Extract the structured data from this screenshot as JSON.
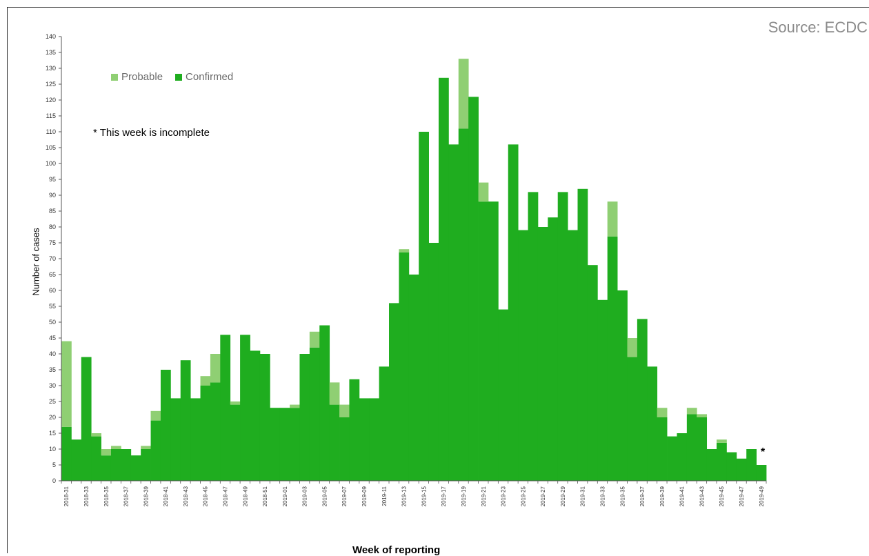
{
  "source": "Source: ECDC",
  "legend": {
    "probable": "Probable",
    "confirmed": "Confirmed"
  },
  "note": "* This week is incomplete",
  "incomplete_marker": "*",
  "colors": {
    "confirmed": "#1fad1f",
    "probable": "#8fcf73",
    "axis": "#555555"
  },
  "chart_data": {
    "type": "bar",
    "stacked": true,
    "ylabel": "Number of cases",
    "xlabel": "Week of reporting",
    "ylim": [
      0,
      140
    ],
    "ytick_step": 5,
    "categories": [
      "2018-31",
      "2018-32",
      "2018-33",
      "2018-34",
      "2018-35",
      "2018-36",
      "2018-37",
      "2018-38",
      "2018-39",
      "2018-40",
      "2018-41",
      "2018-42",
      "2018-43",
      "2018-44",
      "2018-45",
      "2018-46",
      "2018-47",
      "2018-48",
      "2018-49",
      "2018-50",
      "2018-51",
      "2018-52",
      "2019-01",
      "2019-02",
      "2019-03",
      "2019-04",
      "2019-05",
      "2019-06",
      "2019-07",
      "2019-08",
      "2019-09",
      "2019-10",
      "2019-11",
      "2019-12",
      "2019-13",
      "2019-14",
      "2019-15",
      "2019-16",
      "2019-17",
      "2019-18",
      "2019-19",
      "2019-20",
      "2019-21",
      "2019-22",
      "2019-23",
      "2019-24",
      "2019-25",
      "2019-26",
      "2019-27",
      "2019-28",
      "2019-29",
      "2019-30",
      "2019-31",
      "2019-32",
      "2019-33",
      "2019-34",
      "2019-35",
      "2019-36",
      "2019-37",
      "2019-38",
      "2019-39",
      "2019-40",
      "2019-41",
      "2019-42",
      "2019-43",
      "2019-44",
      "2019-45",
      "2019-46",
      "2019-47",
      "2019-48",
      "2019-49"
    ],
    "tick_labels": [
      "2018-31",
      "2018-33",
      "2018-35",
      "2018-37",
      "2018-39",
      "2018-41",
      "2018-43",
      "2018-45",
      "2018-47",
      "2018-49",
      "2018-51",
      "2019-01",
      "2019-03",
      "2019-05",
      "2019-07",
      "2019-09",
      "2019-11",
      "2019-13",
      "2019-15",
      "2019-17",
      "2019-19",
      "2019-21",
      "2019-23",
      "2019-25",
      "2019-27",
      "2019-29",
      "2019-31",
      "2019-33",
      "2019-35",
      "2019-37",
      "2019-39",
      "2019-41",
      "2019-43",
      "2019-45",
      "2019-47",
      "2019-49"
    ],
    "series": [
      {
        "name": "Confirmed",
        "values": [
          17,
          13,
          39,
          14,
          8,
          10,
          10,
          8,
          10,
          19,
          35,
          26,
          38,
          26,
          30,
          31,
          46,
          24,
          46,
          41,
          40,
          23,
          23,
          23,
          40,
          42,
          49,
          24,
          20,
          32,
          26,
          26,
          36,
          56,
          72,
          65,
          110,
          75,
          127,
          106,
          111,
          121,
          88,
          88,
          54,
          106,
          79,
          91,
          80,
          83,
          91,
          79,
          92,
          68,
          57,
          77,
          60,
          39,
          51,
          36,
          20,
          14,
          15,
          21,
          20,
          10,
          12,
          9,
          7,
          10,
          5
        ]
      },
      {
        "name": "Probable",
        "values": [
          27,
          0,
          0,
          1,
          2,
          1,
          0,
          0,
          1,
          3,
          0,
          0,
          0,
          0,
          3,
          9,
          0,
          1,
          0,
          0,
          0,
          0,
          0,
          1,
          0,
          5,
          0,
          7,
          4,
          0,
          0,
          0,
          0,
          0,
          1,
          0,
          0,
          0,
          0,
          0,
          22,
          0,
          6,
          0,
          0,
          0,
          0,
          0,
          0,
          0,
          0,
          0,
          0,
          0,
          0,
          11,
          0,
          6,
          0,
          0,
          3,
          0,
          0,
          2,
          1,
          0,
          1,
          0,
          0,
          0,
          0
        ]
      }
    ]
  }
}
